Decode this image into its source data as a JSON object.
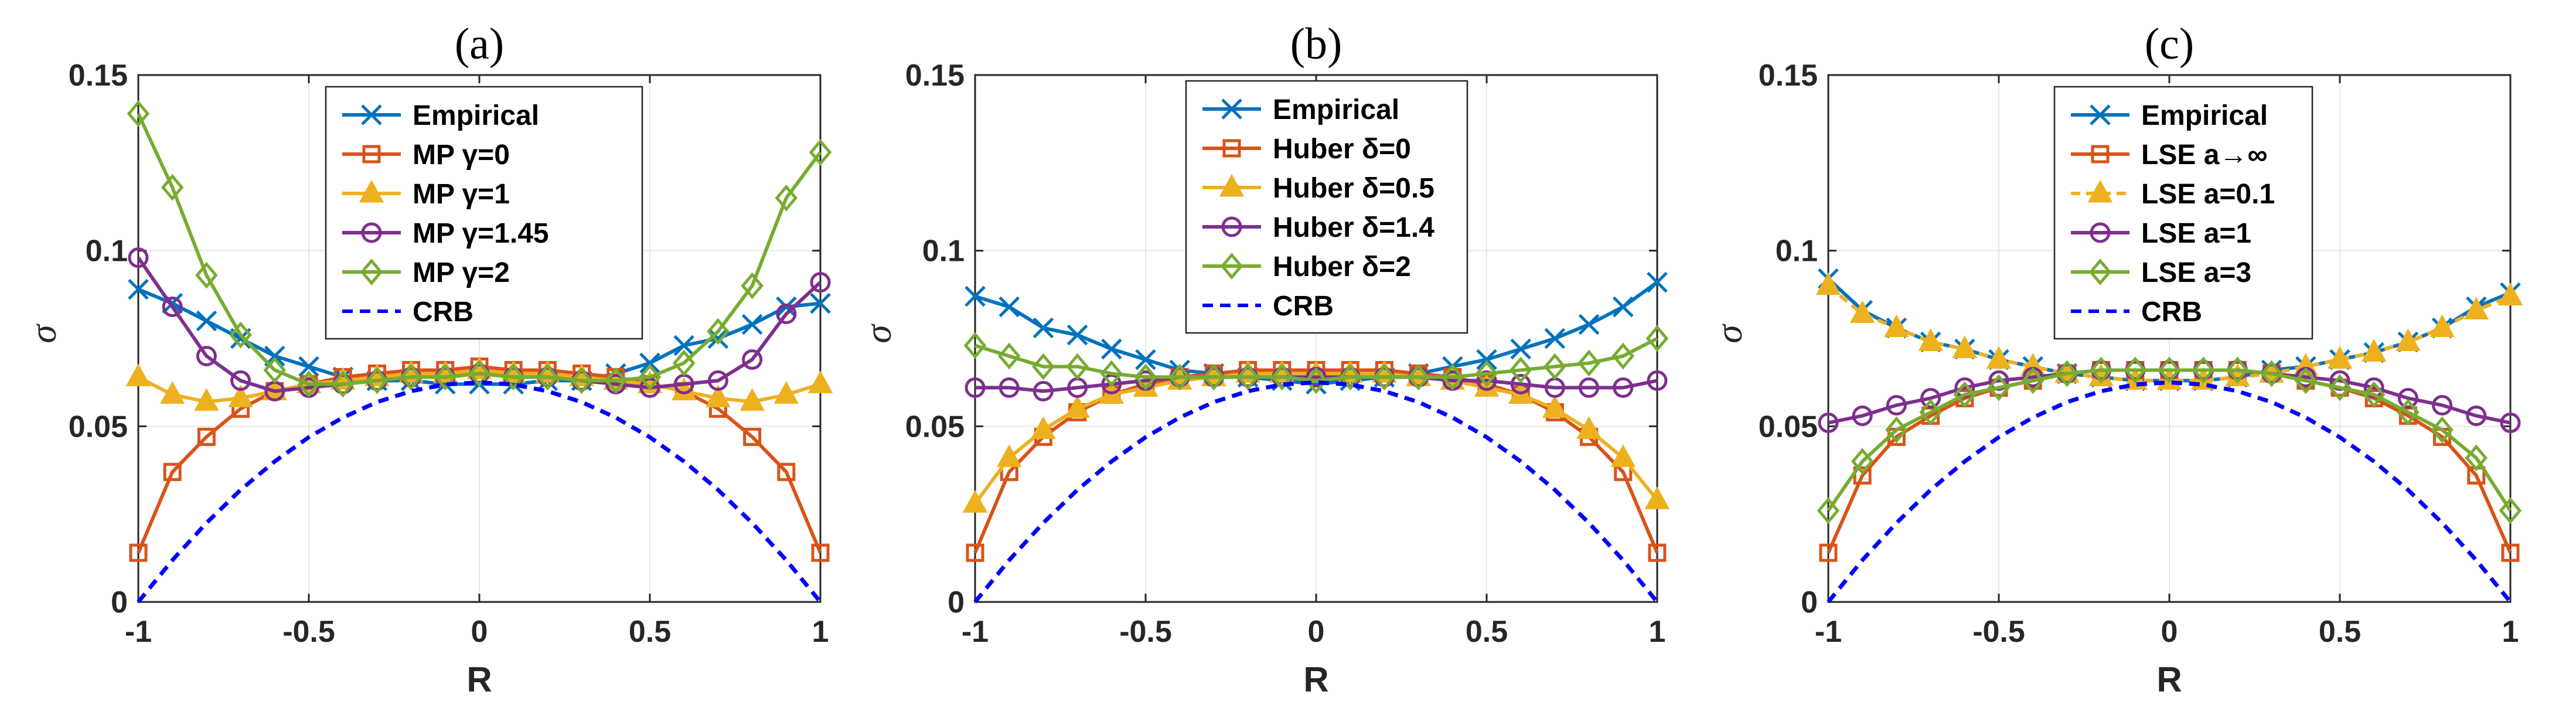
{
  "figure": {
    "xlabel": "R",
    "ylabel": "σ",
    "xticks": [
      "-1",
      "-0.5",
      "0",
      "0.5",
      "1"
    ],
    "yticks": [
      "0",
      "0.05",
      "0.1",
      "0.15"
    ]
  },
  "chart_data": [
    {
      "type": "line",
      "title": "(a)",
      "xlabel": "R",
      "ylabel": "σ",
      "xlim": [
        -1,
        1
      ],
      "ylim": [
        0,
        0.15
      ],
      "grid": true,
      "legend_position": "top-center",
      "x": [
        -1,
        -0.9,
        -0.8,
        -0.7,
        -0.6,
        -0.5,
        -0.4,
        -0.3,
        -0.2,
        -0.1,
        0,
        0.1,
        0.2,
        0.3,
        0.4,
        0.5,
        0.6,
        0.7,
        0.8,
        0.9,
        1
      ],
      "series": [
        {
          "name": "Empirical",
          "color": "#0072bd",
          "marker": "x",
          "dash": "",
          "values": [
            0.089,
            0.085,
            0.08,
            0.075,
            0.07,
            0.067,
            0.064,
            0.063,
            0.063,
            0.062,
            0.062,
            0.062,
            0.063,
            0.063,
            0.065,
            0.068,
            0.073,
            0.075,
            0.079,
            0.084,
            0.085
          ]
        },
        {
          "name": "MP γ=0",
          "color": "#d95319",
          "marker": "square",
          "dash": "",
          "values": [
            0.014,
            0.037,
            0.047,
            0.055,
            0.06,
            0.062,
            0.064,
            0.065,
            0.066,
            0.066,
            0.067,
            0.066,
            0.066,
            0.065,
            0.064,
            0.062,
            0.06,
            0.055,
            0.047,
            0.037,
            0.014
          ]
        },
        {
          "name": "MP γ=1",
          "color": "#edb120",
          "marker": "triangle",
          "dash": "",
          "values": [
            0.064,
            0.059,
            0.057,
            0.058,
            0.06,
            0.062,
            0.063,
            0.064,
            0.065,
            0.065,
            0.066,
            0.065,
            0.065,
            0.064,
            0.063,
            0.062,
            0.06,
            0.058,
            0.057,
            0.059,
            0.062
          ]
        },
        {
          "name": "MP γ=1.45",
          "color": "#7e2f8e",
          "marker": "circle",
          "dash": "",
          "values": [
            0.098,
            0.084,
            0.07,
            0.063,
            0.06,
            0.061,
            0.062,
            0.063,
            0.064,
            0.064,
            0.065,
            0.064,
            0.064,
            0.063,
            0.062,
            0.061,
            0.062,
            0.063,
            0.069,
            0.082,
            0.091
          ]
        },
        {
          "name": "MP γ=2",
          "color": "#77ac30",
          "marker": "diamond",
          "dash": "",
          "values": [
            0.139,
            0.118,
            0.093,
            0.076,
            0.066,
            0.062,
            0.062,
            0.063,
            0.064,
            0.064,
            0.065,
            0.064,
            0.064,
            0.063,
            0.063,
            0.064,
            0.068,
            0.077,
            0.09,
            0.115,
            0.128
          ]
        },
        {
          "name": "CRB",
          "color": "#0000ff",
          "marker": "none",
          "dash": "18,12",
          "values": [
            0.0,
            0.0119,
            0.0225,
            0.0319,
            0.04,
            0.0469,
            0.0525,
            0.0569,
            0.06,
            0.0619,
            0.0625,
            0.0619,
            0.06,
            0.0569,
            0.0525,
            0.0469,
            0.04,
            0.0319,
            0.0225,
            0.0119,
            0.0
          ]
        }
      ]
    },
    {
      "type": "line",
      "title": "(b)",
      "xlabel": "R",
      "ylabel": "σ",
      "xlim": [
        -1,
        1
      ],
      "ylim": [
        0,
        0.15
      ],
      "grid": true,
      "legend_position": "top-center",
      "x": [
        -1,
        -0.9,
        -0.8,
        -0.7,
        -0.6,
        -0.5,
        -0.4,
        -0.3,
        -0.2,
        -0.1,
        0,
        0.1,
        0.2,
        0.3,
        0.4,
        0.5,
        0.6,
        0.7,
        0.8,
        0.9,
        1
      ],
      "series": [
        {
          "name": "Empirical",
          "color": "#0072bd",
          "marker": "x",
          "dash": "",
          "values": [
            0.087,
            0.084,
            0.078,
            0.076,
            0.072,
            0.069,
            0.066,
            0.065,
            0.064,
            0.063,
            0.062,
            0.063,
            0.064,
            0.065,
            0.067,
            0.069,
            0.072,
            0.075,
            0.079,
            0.084,
            0.091
          ]
        },
        {
          "name": "Huber δ=0",
          "color": "#d95319",
          "marker": "square",
          "dash": "",
          "values": [
            0.014,
            0.037,
            0.047,
            0.054,
            0.059,
            0.062,
            0.064,
            0.065,
            0.066,
            0.066,
            0.066,
            0.066,
            0.066,
            0.065,
            0.064,
            0.062,
            0.059,
            0.054,
            0.047,
            0.037,
            0.014
          ]
        },
        {
          "name": "Huber δ=0.5",
          "color": "#edb120",
          "marker": "triangle",
          "dash": "",
          "values": [
            0.028,
            0.041,
            0.049,
            0.055,
            0.059,
            0.061,
            0.063,
            0.064,
            0.065,
            0.065,
            0.065,
            0.065,
            0.065,
            0.064,
            0.063,
            0.061,
            0.059,
            0.055,
            0.049,
            0.041,
            0.029
          ]
        },
        {
          "name": "Huber δ=1.4",
          "color": "#7e2f8e",
          "marker": "circle",
          "dash": "",
          "values": [
            0.061,
            0.061,
            0.06,
            0.061,
            0.062,
            0.063,
            0.064,
            0.064,
            0.064,
            0.064,
            0.064,
            0.064,
            0.064,
            0.064,
            0.063,
            0.063,
            0.062,
            0.061,
            0.061,
            0.061,
            0.063
          ]
        },
        {
          "name": "Huber δ=2",
          "color": "#77ac30",
          "marker": "diamond",
          "dash": "",
          "values": [
            0.073,
            0.07,
            0.067,
            0.067,
            0.065,
            0.064,
            0.064,
            0.064,
            0.064,
            0.064,
            0.063,
            0.064,
            0.064,
            0.064,
            0.064,
            0.065,
            0.066,
            0.067,
            0.068,
            0.07,
            0.075
          ]
        },
        {
          "name": "CRB",
          "color": "#0000ff",
          "marker": "none",
          "dash": "18,12",
          "values": [
            0.0,
            0.0119,
            0.0225,
            0.0319,
            0.04,
            0.0469,
            0.0525,
            0.0569,
            0.06,
            0.0619,
            0.0625,
            0.0619,
            0.06,
            0.0569,
            0.0525,
            0.0469,
            0.04,
            0.0319,
            0.0225,
            0.0119,
            0.0
          ]
        }
      ]
    },
    {
      "type": "line",
      "title": "(c)",
      "xlabel": "R",
      "ylabel": "σ",
      "xlim": [
        -1,
        1
      ],
      "ylim": [
        0,
        0.15
      ],
      "grid": true,
      "legend_position": "top-center",
      "x": [
        -1,
        -0.9,
        -0.8,
        -0.7,
        -0.6,
        -0.5,
        -0.4,
        -0.3,
        -0.2,
        -0.1,
        0,
        0.1,
        0.2,
        0.3,
        0.4,
        0.5,
        0.6,
        0.7,
        0.8,
        0.9,
        1
      ],
      "series": [
        {
          "name": "Empirical",
          "color": "#0072bd",
          "marker": "x",
          "dash": "",
          "values": [
            0.092,
            0.083,
            0.078,
            0.074,
            0.072,
            0.069,
            0.067,
            0.065,
            0.064,
            0.063,
            0.063,
            0.063,
            0.064,
            0.066,
            0.067,
            0.069,
            0.071,
            0.074,
            0.078,
            0.084,
            0.088
          ]
        },
        {
          "name": "LSE a→∞",
          "color": "#d95319",
          "marker": "square",
          "dash": "",
          "values": [
            0.014,
            0.036,
            0.047,
            0.053,
            0.058,
            0.061,
            0.063,
            0.065,
            0.066,
            0.066,
            0.066,
            0.066,
            0.066,
            0.065,
            0.063,
            0.061,
            0.058,
            0.053,
            0.047,
            0.036,
            0.014
          ]
        },
        {
          "name": "LSE a=0.1",
          "color": "#edb120",
          "marker": "triangle",
          "dash": "16,10",
          "values": [
            0.09,
            0.082,
            0.078,
            0.074,
            0.072,
            0.069,
            0.067,
            0.065,
            0.064,
            0.063,
            0.063,
            0.063,
            0.064,
            0.065,
            0.067,
            0.069,
            0.071,
            0.074,
            0.078,
            0.083,
            0.087
          ]
        },
        {
          "name": "LSE a=1",
          "color": "#7e2f8e",
          "marker": "circle",
          "dash": "",
          "values": [
            0.051,
            0.053,
            0.056,
            0.058,
            0.061,
            0.063,
            0.064,
            0.065,
            0.066,
            0.066,
            0.066,
            0.066,
            0.066,
            0.065,
            0.064,
            0.063,
            0.061,
            0.058,
            0.056,
            0.053,
            0.051
          ]
        },
        {
          "name": "LSE a=3",
          "color": "#77ac30",
          "marker": "diamond",
          "dash": "",
          "values": [
            0.026,
            0.04,
            0.049,
            0.054,
            0.059,
            0.061,
            0.063,
            0.065,
            0.066,
            0.066,
            0.066,
            0.066,
            0.066,
            0.065,
            0.063,
            0.061,
            0.059,
            0.054,
            0.049,
            0.041,
            0.026
          ]
        },
        {
          "name": "CRB",
          "color": "#0000ff",
          "marker": "none",
          "dash": "18,12",
          "values": [
            0.0,
            0.0119,
            0.0225,
            0.0319,
            0.04,
            0.0469,
            0.0525,
            0.0569,
            0.06,
            0.0619,
            0.0625,
            0.0619,
            0.06,
            0.0569,
            0.0525,
            0.0469,
            0.04,
            0.0319,
            0.0225,
            0.0119,
            0.0
          ]
        }
      ]
    }
  ]
}
